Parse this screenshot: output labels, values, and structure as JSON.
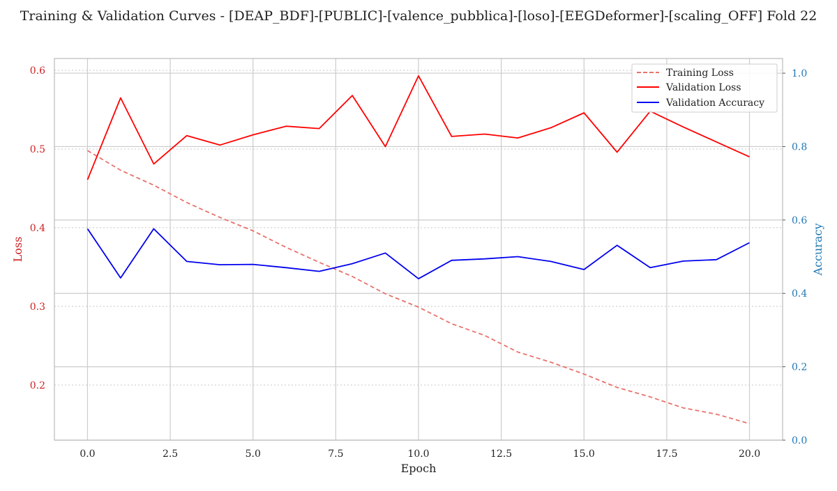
{
  "title": "Training & Validation Curves - [DEAP_BDF]-[PUBLIC]-[valence_pubblica]-[loso]-[EEGDeformer]-[scaling_OFF] Fold 22",
  "colors": {
    "training_loss": "#e8726b",
    "validation_loss": "#ff0000",
    "validation_accuracy": "#0000ee",
    "left_axis": "#cc2222",
    "right_axis": "#1f77b4",
    "grid": "#cccccc"
  },
  "chart_data": {
    "type": "line",
    "xlabel": "Epoch",
    "ylabel_left": "Loss",
    "ylabel_right": "Accuracy",
    "xlim": [
      -1,
      21
    ],
    "ylim_left": [
      0.13,
      0.615
    ],
    "ylim_right": [
      0.0,
      1.04
    ],
    "x_ticks": [
      "0.0",
      "2.5",
      "5.0",
      "7.5",
      "10.0",
      "12.5",
      "15.0",
      "17.5",
      "20.0"
    ],
    "x_tick_values": [
      0,
      2.5,
      5,
      7.5,
      10,
      12.5,
      15,
      17.5,
      20
    ],
    "y_left_ticks": [
      "0.2",
      "0.3",
      "0.4",
      "0.5",
      "0.6"
    ],
    "y_left_tick_values": [
      0.2,
      0.3,
      0.4,
      0.5,
      0.6
    ],
    "y_right_ticks": [
      "0.0",
      "0.2",
      "0.4",
      "0.6",
      "0.8",
      "1.0"
    ],
    "y_right_tick_values": [
      0.0,
      0.2,
      0.4,
      0.6,
      0.8,
      1.0
    ],
    "grid": true,
    "legend_position": "top-right",
    "x": [
      0,
      1,
      2,
      3,
      4,
      5,
      6,
      7,
      8,
      9,
      10,
      11,
      12,
      13,
      14,
      15,
      16,
      17,
      18,
      19,
      20
    ],
    "series": [
      {
        "name": "Training Loss",
        "axis": "left",
        "style": "dashed",
        "values": [
          0.498,
          0.473,
          0.454,
          0.432,
          0.413,
          0.396,
          0.375,
          0.356,
          0.338,
          0.316,
          0.299,
          0.278,
          0.263,
          0.242,
          0.229,
          0.214,
          0.197,
          0.185,
          0.171,
          0.163,
          0.151
        ]
      },
      {
        "name": "Validation Loss",
        "axis": "left",
        "style": "solid",
        "values": [
          0.461,
          0.565,
          0.481,
          0.517,
          0.505,
          0.518,
          0.529,
          0.526,
          0.568,
          0.503,
          0.593,
          0.516,
          0.519,
          0.514,
          0.527,
          0.546,
          0.496,
          0.548,
          0.528,
          0.509,
          0.49
        ]
      },
      {
        "name": "Validation Accuracy",
        "axis": "right",
        "style": "solid",
        "values": [
          0.576,
          0.442,
          0.576,
          0.487,
          0.478,
          0.479,
          0.47,
          0.46,
          0.481,
          0.51,
          0.44,
          0.49,
          0.494,
          0.5,
          0.487,
          0.465,
          0.531,
          0.47,
          0.488,
          0.492,
          0.538
        ]
      }
    ]
  }
}
